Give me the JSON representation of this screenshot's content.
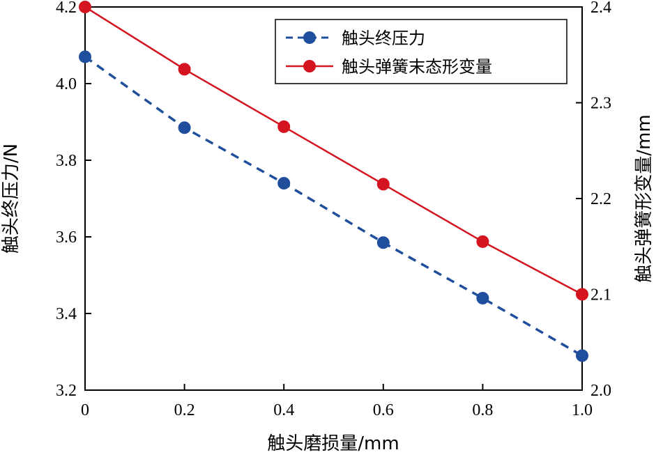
{
  "chart_data": {
    "type": "line",
    "x": [
      0,
      0.2,
      0.4,
      0.6,
      0.8,
      1.0
    ],
    "x_tick_labels": [
      "0",
      "0.2",
      "0.4",
      "0.6",
      "0.8",
      "1.0"
    ],
    "xlim": [
      0,
      1.0
    ],
    "xlabel": "触头磨损量/mm",
    "ylabel_left": "触头终压力/N",
    "ylabel_right": "触头弹簧形变量/mm",
    "ylim_left": [
      3.2,
      4.2
    ],
    "ylim_right": [
      2.0,
      2.4
    ],
    "y_left_tick_labels": [
      "3.2",
      "3.4",
      "3.6",
      "3.8",
      "4.0",
      "4.2"
    ],
    "y_right_tick_labels": [
      "2.0",
      "2.1",
      "2.2",
      "2.3",
      "2.4"
    ],
    "grid": false,
    "legend_position": "top-right",
    "series": [
      {
        "name": "触头终压力",
        "axis": "left",
        "values": [
          4.07,
          3.885,
          3.74,
          3.585,
          3.44,
          3.29
        ],
        "color": "#1f4e9c",
        "line_style": "dashed",
        "marker": "circle"
      },
      {
        "name": "触头弹簧末态形变量",
        "axis": "right",
        "values": [
          2.4,
          2.335,
          2.275,
          2.215,
          2.155,
          2.1
        ],
        "color": "#d4141e",
        "line_style": "solid",
        "marker": "circle"
      }
    ]
  }
}
